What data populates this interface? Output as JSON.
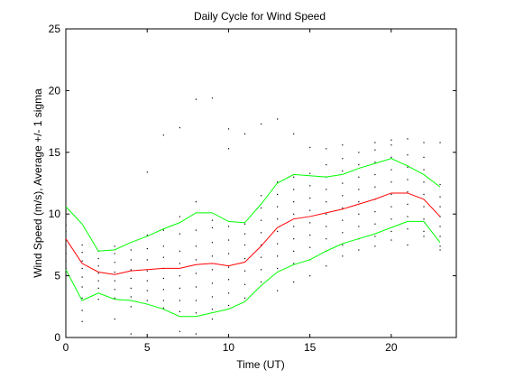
{
  "chart_data": {
    "type": "line",
    "title": "Daily Cycle for Wind Speed",
    "xlabel": "Time (UT)",
    "ylabel": "Wind Speed (m/s), Average +/- 1 sigma",
    "xlim": [
      0,
      24
    ],
    "ylim": [
      0,
      25
    ],
    "xticks": [
      0,
      5,
      10,
      15,
      20
    ],
    "yticks": [
      0,
      5,
      10,
      15,
      20,
      25
    ],
    "grid": false,
    "x": [
      0,
      1,
      2,
      3,
      4,
      5,
      6,
      7,
      8,
      9,
      10,
      11,
      12,
      13,
      14,
      15,
      16,
      17,
      18,
      19,
      20,
      21,
      22,
      23
    ],
    "series": [
      {
        "role": "mean",
        "color": "#ff0000",
        "values": [
          8.0,
          6.0,
          5.3,
          5.1,
          5.4,
          5.5,
          5.6,
          5.6,
          5.9,
          6.0,
          5.8,
          6.1,
          7.4,
          8.9,
          9.6,
          9.8,
          10.1,
          10.4,
          10.8,
          11.2,
          11.7,
          11.7,
          11.2,
          9.8
        ]
      },
      {
        "role": "mean + 1 sigma",
        "color": "#00ff00",
        "values": [
          10.6,
          9.2,
          7.0,
          7.1,
          7.7,
          8.2,
          8.8,
          9.3,
          10.1,
          10.1,
          9.4,
          9.3,
          10.8,
          12.5,
          13.2,
          13.1,
          13.0,
          13.2,
          13.7,
          14.1,
          14.5,
          13.9,
          13.2,
          12.2
        ]
      },
      {
        "role": "mean - 1 sigma",
        "color": "#00ff00",
        "values": [
          5.5,
          3.0,
          3.6,
          3.1,
          3.0,
          2.7,
          2.3,
          1.7,
          1.7,
          2.0,
          2.3,
          2.9,
          4.2,
          5.3,
          5.9,
          6.3,
          7.0,
          7.6,
          8.0,
          8.4,
          8.9,
          9.4,
          9.4,
          7.7
        ]
      }
    ],
    "scatter": {
      "color": "#000000",
      "points": [
        [
          0,
          6.2
        ],
        [
          0,
          6.8
        ],
        [
          0,
          7.4
        ],
        [
          0,
          7.9
        ],
        [
          0,
          8.6
        ],
        [
          0,
          9.1
        ],
        [
          0,
          9.8
        ],
        [
          0,
          10.3
        ],
        [
          0,
          5.6
        ],
        [
          1,
          3.2
        ],
        [
          1,
          4.1
        ],
        [
          1,
          4.9
        ],
        [
          1,
          5.6
        ],
        [
          1,
          6.2
        ],
        [
          1,
          6.9
        ],
        [
          1,
          7.5
        ],
        [
          1,
          1.3
        ],
        [
          1,
          2.2
        ],
        [
          2,
          4.0
        ],
        [
          2,
          4.6
        ],
        [
          2,
          5.2
        ],
        [
          2,
          5.8
        ],
        [
          2,
          6.4
        ],
        [
          2,
          7.0
        ],
        [
          2,
          3.1
        ],
        [
          3,
          3.2
        ],
        [
          3,
          3.9
        ],
        [
          3,
          4.6
        ],
        [
          3,
          5.3
        ],
        [
          3,
          6.1
        ],
        [
          3,
          6.8
        ],
        [
          3,
          7.4
        ],
        [
          3,
          1.5
        ],
        [
          4,
          3.3
        ],
        [
          4,
          4.0
        ],
        [
          4,
          4.8
        ],
        [
          4,
          5.5
        ],
        [
          4,
          6.3
        ],
        [
          4,
          7.1
        ],
        [
          4,
          2.5
        ],
        [
          4,
          0.3
        ],
        [
          5,
          3.0
        ],
        [
          5,
          3.8
        ],
        [
          5,
          4.6
        ],
        [
          5,
          5.4
        ],
        [
          5,
          6.3
        ],
        [
          5,
          7.2
        ],
        [
          5,
          8.3
        ],
        [
          5,
          13.4
        ],
        [
          6,
          3.0
        ],
        [
          6,
          3.9
        ],
        [
          6,
          4.8
        ],
        [
          6,
          5.6
        ],
        [
          6,
          6.5
        ],
        [
          6,
          7.4
        ],
        [
          6,
          8.7
        ],
        [
          6,
          16.4
        ],
        [
          6,
          2.4
        ],
        [
          7,
          2.1
        ],
        [
          7,
          3.0
        ],
        [
          7,
          4.0
        ],
        [
          7,
          5.0
        ],
        [
          7,
          6.0
        ],
        [
          7,
          7.0
        ],
        [
          7,
          8.4
        ],
        [
          7,
          9.8
        ],
        [
          7,
          17.0
        ],
        [
          7,
          0.5
        ],
        [
          8,
          2.0
        ],
        [
          8,
          3.0
        ],
        [
          8,
          4.1
        ],
        [
          8,
          5.2
        ],
        [
          8,
          6.3
        ],
        [
          8,
          7.4
        ],
        [
          8,
          8.7
        ],
        [
          8,
          11.0
        ],
        [
          8,
          19.3
        ],
        [
          8,
          0.3
        ],
        [
          9,
          2.3
        ],
        [
          9,
          3.3
        ],
        [
          9,
          4.4
        ],
        [
          9,
          5.5
        ],
        [
          9,
          6.6
        ],
        [
          9,
          7.7
        ],
        [
          9,
          8.9
        ],
        [
          9,
          9.5
        ],
        [
          9,
          19.4
        ],
        [
          9,
          1.5
        ],
        [
          10,
          2.6
        ],
        [
          10,
          3.6
        ],
        [
          10,
          4.7
        ],
        [
          10,
          5.7
        ],
        [
          10,
          6.8
        ],
        [
          10,
          7.9
        ],
        [
          10,
          9.0
        ],
        [
          10,
          15.3
        ],
        [
          10,
          16.9
        ],
        [
          11,
          3.2
        ],
        [
          11,
          4.3
        ],
        [
          11,
          5.4
        ],
        [
          11,
          6.4
        ],
        [
          11,
          7.5
        ],
        [
          11,
          8.4
        ],
        [
          11,
          9.2
        ],
        [
          11,
          16.5
        ],
        [
          12,
          4.5
        ],
        [
          12,
          5.5
        ],
        [
          12,
          6.5
        ],
        [
          12,
          7.5
        ],
        [
          12,
          8.5
        ],
        [
          12,
          9.5
        ],
        [
          12,
          10.5
        ],
        [
          12,
          11.5
        ],
        [
          12,
          17.3
        ],
        [
          13,
          5.6
        ],
        [
          13,
          6.6
        ],
        [
          13,
          7.6
        ],
        [
          13,
          8.6
        ],
        [
          13,
          9.6
        ],
        [
          13,
          10.6
        ],
        [
          13,
          11.6
        ],
        [
          13,
          12.6
        ],
        [
          13,
          17.7
        ],
        [
          13,
          3.8
        ],
        [
          14,
          6.0
        ],
        [
          14,
          7.0
        ],
        [
          14,
          8.0
        ],
        [
          14,
          9.0
        ],
        [
          14,
          10.0
        ],
        [
          14,
          11.0
        ],
        [
          14,
          12.0
        ],
        [
          14,
          13.0
        ],
        [
          14,
          16.5
        ],
        [
          14,
          4.5
        ],
        [
          15,
          6.3
        ],
        [
          15,
          7.3
        ],
        [
          15,
          8.3
        ],
        [
          15,
          9.3
        ],
        [
          15,
          10.3
        ],
        [
          15,
          11.3
        ],
        [
          15,
          12.3
        ],
        [
          15,
          13.3
        ],
        [
          15,
          15.4
        ],
        [
          15,
          5.0
        ],
        [
          16,
          7.0
        ],
        [
          16,
          8.0
        ],
        [
          16,
          9.0
        ],
        [
          16,
          10.0
        ],
        [
          16,
          11.0
        ],
        [
          16,
          12.0
        ],
        [
          16,
          13.0
        ],
        [
          16,
          14.0
        ],
        [
          16,
          15.3
        ],
        [
          16,
          5.8
        ],
        [
          17,
          7.5
        ],
        [
          17,
          8.5
        ],
        [
          17,
          9.5
        ],
        [
          17,
          10.5
        ],
        [
          17,
          11.5
        ],
        [
          17,
          12.5
        ],
        [
          17,
          13.5
        ],
        [
          17,
          14.5
        ],
        [
          17,
          15.6
        ],
        [
          17,
          6.6
        ],
        [
          18,
          8.0
        ],
        [
          18,
          9.0
        ],
        [
          18,
          10.0
        ],
        [
          18,
          11.0
        ],
        [
          18,
          12.0
        ],
        [
          18,
          13.0
        ],
        [
          18,
          14.0
        ],
        [
          18,
          15.0
        ],
        [
          18,
          7.1
        ],
        [
          19,
          8.2
        ],
        [
          19,
          9.2
        ],
        [
          19,
          10.2
        ],
        [
          19,
          11.2
        ],
        [
          19,
          12.2
        ],
        [
          19,
          13.2
        ],
        [
          19,
          14.2
        ],
        [
          19,
          15.2
        ],
        [
          19,
          15.8
        ],
        [
          19,
          7.4
        ],
        [
          20,
          8.6
        ],
        [
          20,
          9.6
        ],
        [
          20,
          10.6
        ],
        [
          20,
          11.6
        ],
        [
          20,
          12.6
        ],
        [
          20,
          13.6
        ],
        [
          20,
          14.6
        ],
        [
          20,
          15.6
        ],
        [
          20,
          16.0
        ],
        [
          20,
          7.9
        ],
        [
          21,
          8.8
        ],
        [
          21,
          9.8
        ],
        [
          21,
          10.8
        ],
        [
          21,
          11.8
        ],
        [
          21,
          12.8
        ],
        [
          21,
          13.8
        ],
        [
          21,
          14.8
        ],
        [
          21,
          16.1
        ],
        [
          21,
          7.5
        ],
        [
          22,
          8.6
        ],
        [
          22,
          9.6
        ],
        [
          22,
          10.6
        ],
        [
          22,
          11.6
        ],
        [
          22,
          12.6
        ],
        [
          22,
          13.6
        ],
        [
          22,
          14.6
        ],
        [
          22,
          15.8
        ],
        [
          22,
          8.2
        ],
        [
          23,
          7.4
        ],
        [
          23,
          8.2
        ],
        [
          23,
          9.0
        ],
        [
          23,
          9.8
        ],
        [
          23,
          10.6
        ],
        [
          23,
          11.4
        ],
        [
          23,
          12.4
        ],
        [
          23,
          15.8
        ],
        [
          23,
          7.1
        ]
      ]
    }
  }
}
